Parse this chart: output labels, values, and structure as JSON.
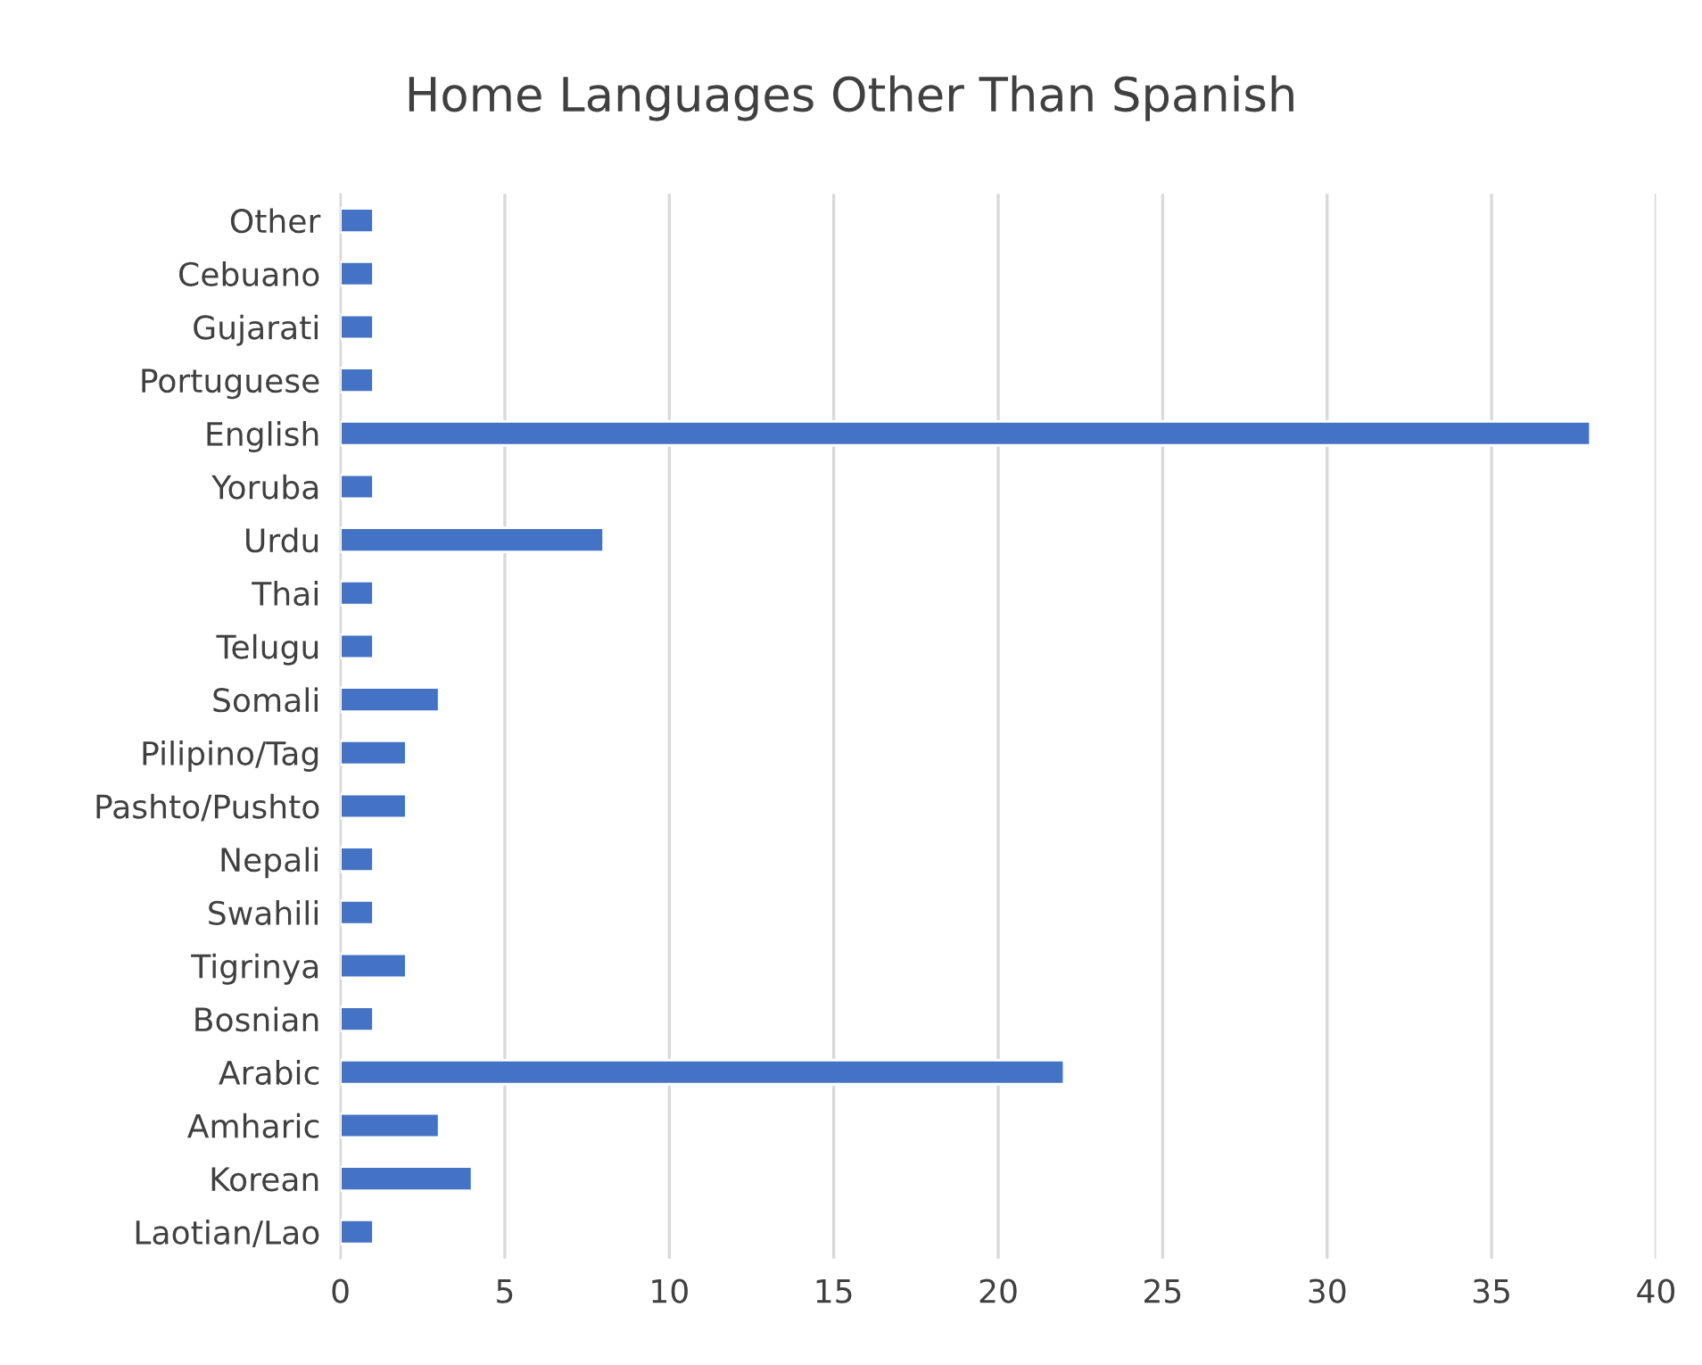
{
  "chart_data": {
    "type": "bar",
    "orientation": "horizontal",
    "title": "Home Languages Other Than Spanish",
    "categories": [
      "Other",
      "Cebuano",
      "Gujarati",
      "Portuguese",
      "English",
      "Yoruba",
      "Urdu",
      "Thai",
      "Telugu",
      "Somali",
      "Pilipino/Tag",
      "Pashto/Pushto",
      "Nepali",
      "Swahili",
      "Tigrinya",
      "Bosnian",
      "Arabic",
      "Amharic",
      "Korean",
      "Laotian/Lao"
    ],
    "values": [
      1,
      1,
      1,
      1,
      38,
      1,
      8,
      1,
      1,
      3,
      2,
      2,
      1,
      1,
      2,
      1,
      22,
      3,
      4,
      1
    ],
    "color": "#4472c4",
    "xlim": [
      0,
      40
    ],
    "xticks": [
      0,
      5,
      10,
      15,
      20,
      25,
      30,
      35,
      40
    ],
    "grid": "x",
    "legend": false
  }
}
